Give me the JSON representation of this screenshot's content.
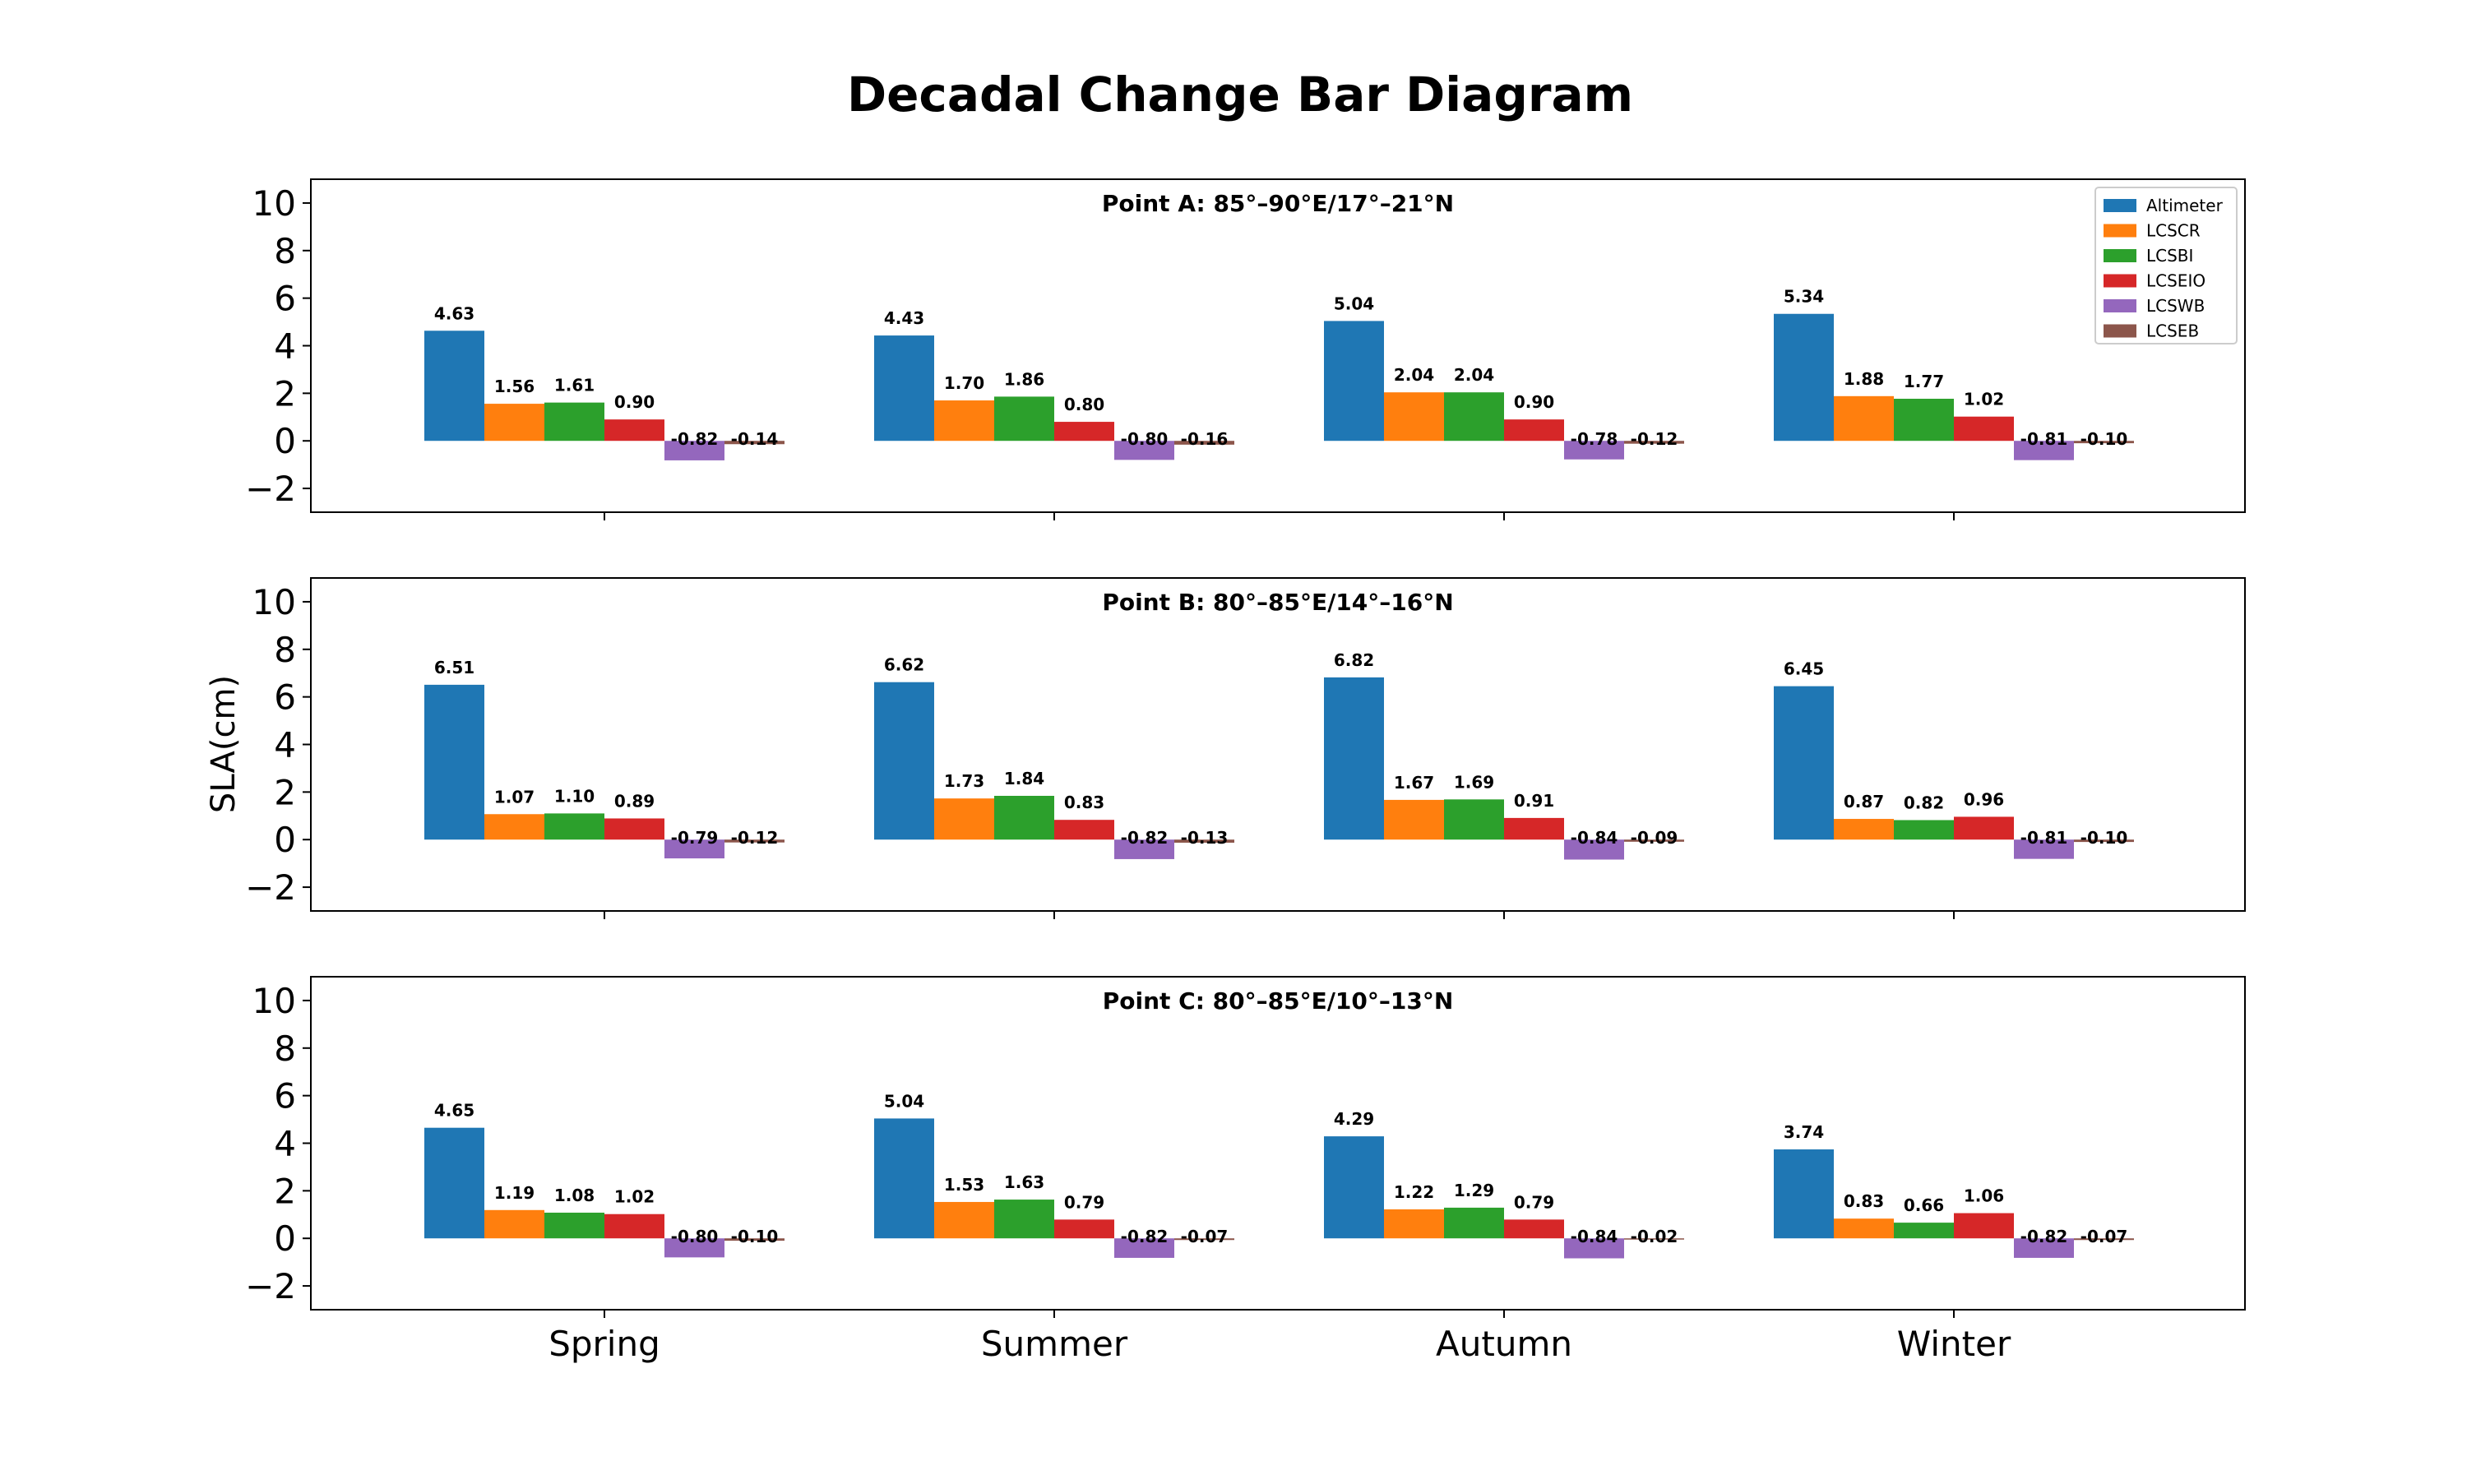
{
  "chart_data": {
    "type": "bar",
    "title": "Decadal Change Bar Diagram",
    "ylabel": "SLA(cm)",
    "xlabel": "",
    "ylim": [
      -3,
      11
    ],
    "yticks": [
      -2,
      0,
      2,
      4,
      6,
      8,
      10
    ],
    "categories": [
      "Spring",
      "Summer",
      "Autumn",
      "Winter"
    ],
    "legend_position": "top-right",
    "grid": false,
    "series_meta": [
      {
        "name": "Altimeter",
        "color": "#1f77b4"
      },
      {
        "name": "LCSCR",
        "color": "#ff7f0e"
      },
      {
        "name": "LCSBI",
        "color": "#2ca02c"
      },
      {
        "name": "LCSEIO",
        "color": "#d62728"
      },
      {
        "name": "LCSWB",
        "color": "#9467bd"
      },
      {
        "name": "LCSEB",
        "color": "#8c564b"
      }
    ],
    "panels": [
      {
        "title": "Point A: 85°–90°E/17°–21°N",
        "values": [
          [
            4.63,
            4.43,
            5.04,
            5.34
          ],
          [
            1.56,
            1.7,
            2.04,
            1.88
          ],
          [
            1.61,
            1.86,
            2.04,
            1.77
          ],
          [
            0.9,
            0.8,
            0.9,
            1.02
          ],
          [
            -0.82,
            -0.8,
            -0.78,
            -0.81
          ],
          [
            -0.14,
            -0.16,
            -0.12,
            -0.1
          ]
        ],
        "labels": [
          [
            "4.63",
            "4.43",
            "5.04",
            "5.34"
          ],
          [
            "1.56",
            "1.70",
            "2.04",
            "1.88"
          ],
          [
            "1.61",
            "1.86",
            "2.04",
            "1.77"
          ],
          [
            "0.90",
            "0.80",
            "0.90",
            "1.02"
          ],
          [
            "-0.82",
            "-0.80",
            "-0.78",
            "-0.81"
          ],
          [
            "-0.14",
            "-0.16",
            "-0.12",
            "-0.10"
          ]
        ]
      },
      {
        "title": "Point B: 80°–85°E/14°–16°N",
        "values": [
          [
            6.51,
            6.62,
            6.82,
            6.45
          ],
          [
            1.07,
            1.73,
            1.67,
            0.87
          ],
          [
            1.1,
            1.84,
            1.69,
            0.82
          ],
          [
            0.89,
            0.83,
            0.91,
            0.96
          ],
          [
            -0.79,
            -0.82,
            -0.84,
            -0.81
          ],
          [
            -0.12,
            -0.13,
            -0.09,
            -0.1
          ]
        ],
        "labels": [
          [
            "6.51",
            "6.62",
            "6.82",
            "6.45"
          ],
          [
            "1.07",
            "1.73",
            "1.67",
            "0.87"
          ],
          [
            "1.10",
            "1.84",
            "1.69",
            "0.82"
          ],
          [
            "0.89",
            "0.83",
            "0.91",
            "0.96"
          ],
          [
            "-0.79",
            "-0.82",
            "-0.84",
            "-0.81"
          ],
          [
            "-0.12",
            "-0.13",
            "-0.09",
            "-0.10"
          ]
        ]
      },
      {
        "title": "Point C: 80°–85°E/10°–13°N",
        "values": [
          [
            4.65,
            5.04,
            4.29,
            3.74
          ],
          [
            1.19,
            1.53,
            1.22,
            0.83
          ],
          [
            1.08,
            1.63,
            1.29,
            0.66
          ],
          [
            1.02,
            0.79,
            0.79,
            1.06
          ],
          [
            -0.8,
            -0.82,
            -0.84,
            -0.82
          ],
          [
            -0.1,
            -0.07,
            -0.02,
            -0.07
          ]
        ],
        "labels": [
          [
            "4.65",
            "5.04",
            "4.29",
            "3.74"
          ],
          [
            "1.19",
            "1.53",
            "1.22",
            "0.83"
          ],
          [
            "1.08",
            "1.63",
            "1.29",
            "0.66"
          ],
          [
            "1.02",
            "0.79",
            "0.79",
            "1.06"
          ],
          [
            "-0.80",
            "-0.82",
            "-0.84",
            "-0.82"
          ],
          [
            "-0.10",
            "-0.07",
            "-0.02",
            "-0.07"
          ]
        ]
      }
    ]
  }
}
